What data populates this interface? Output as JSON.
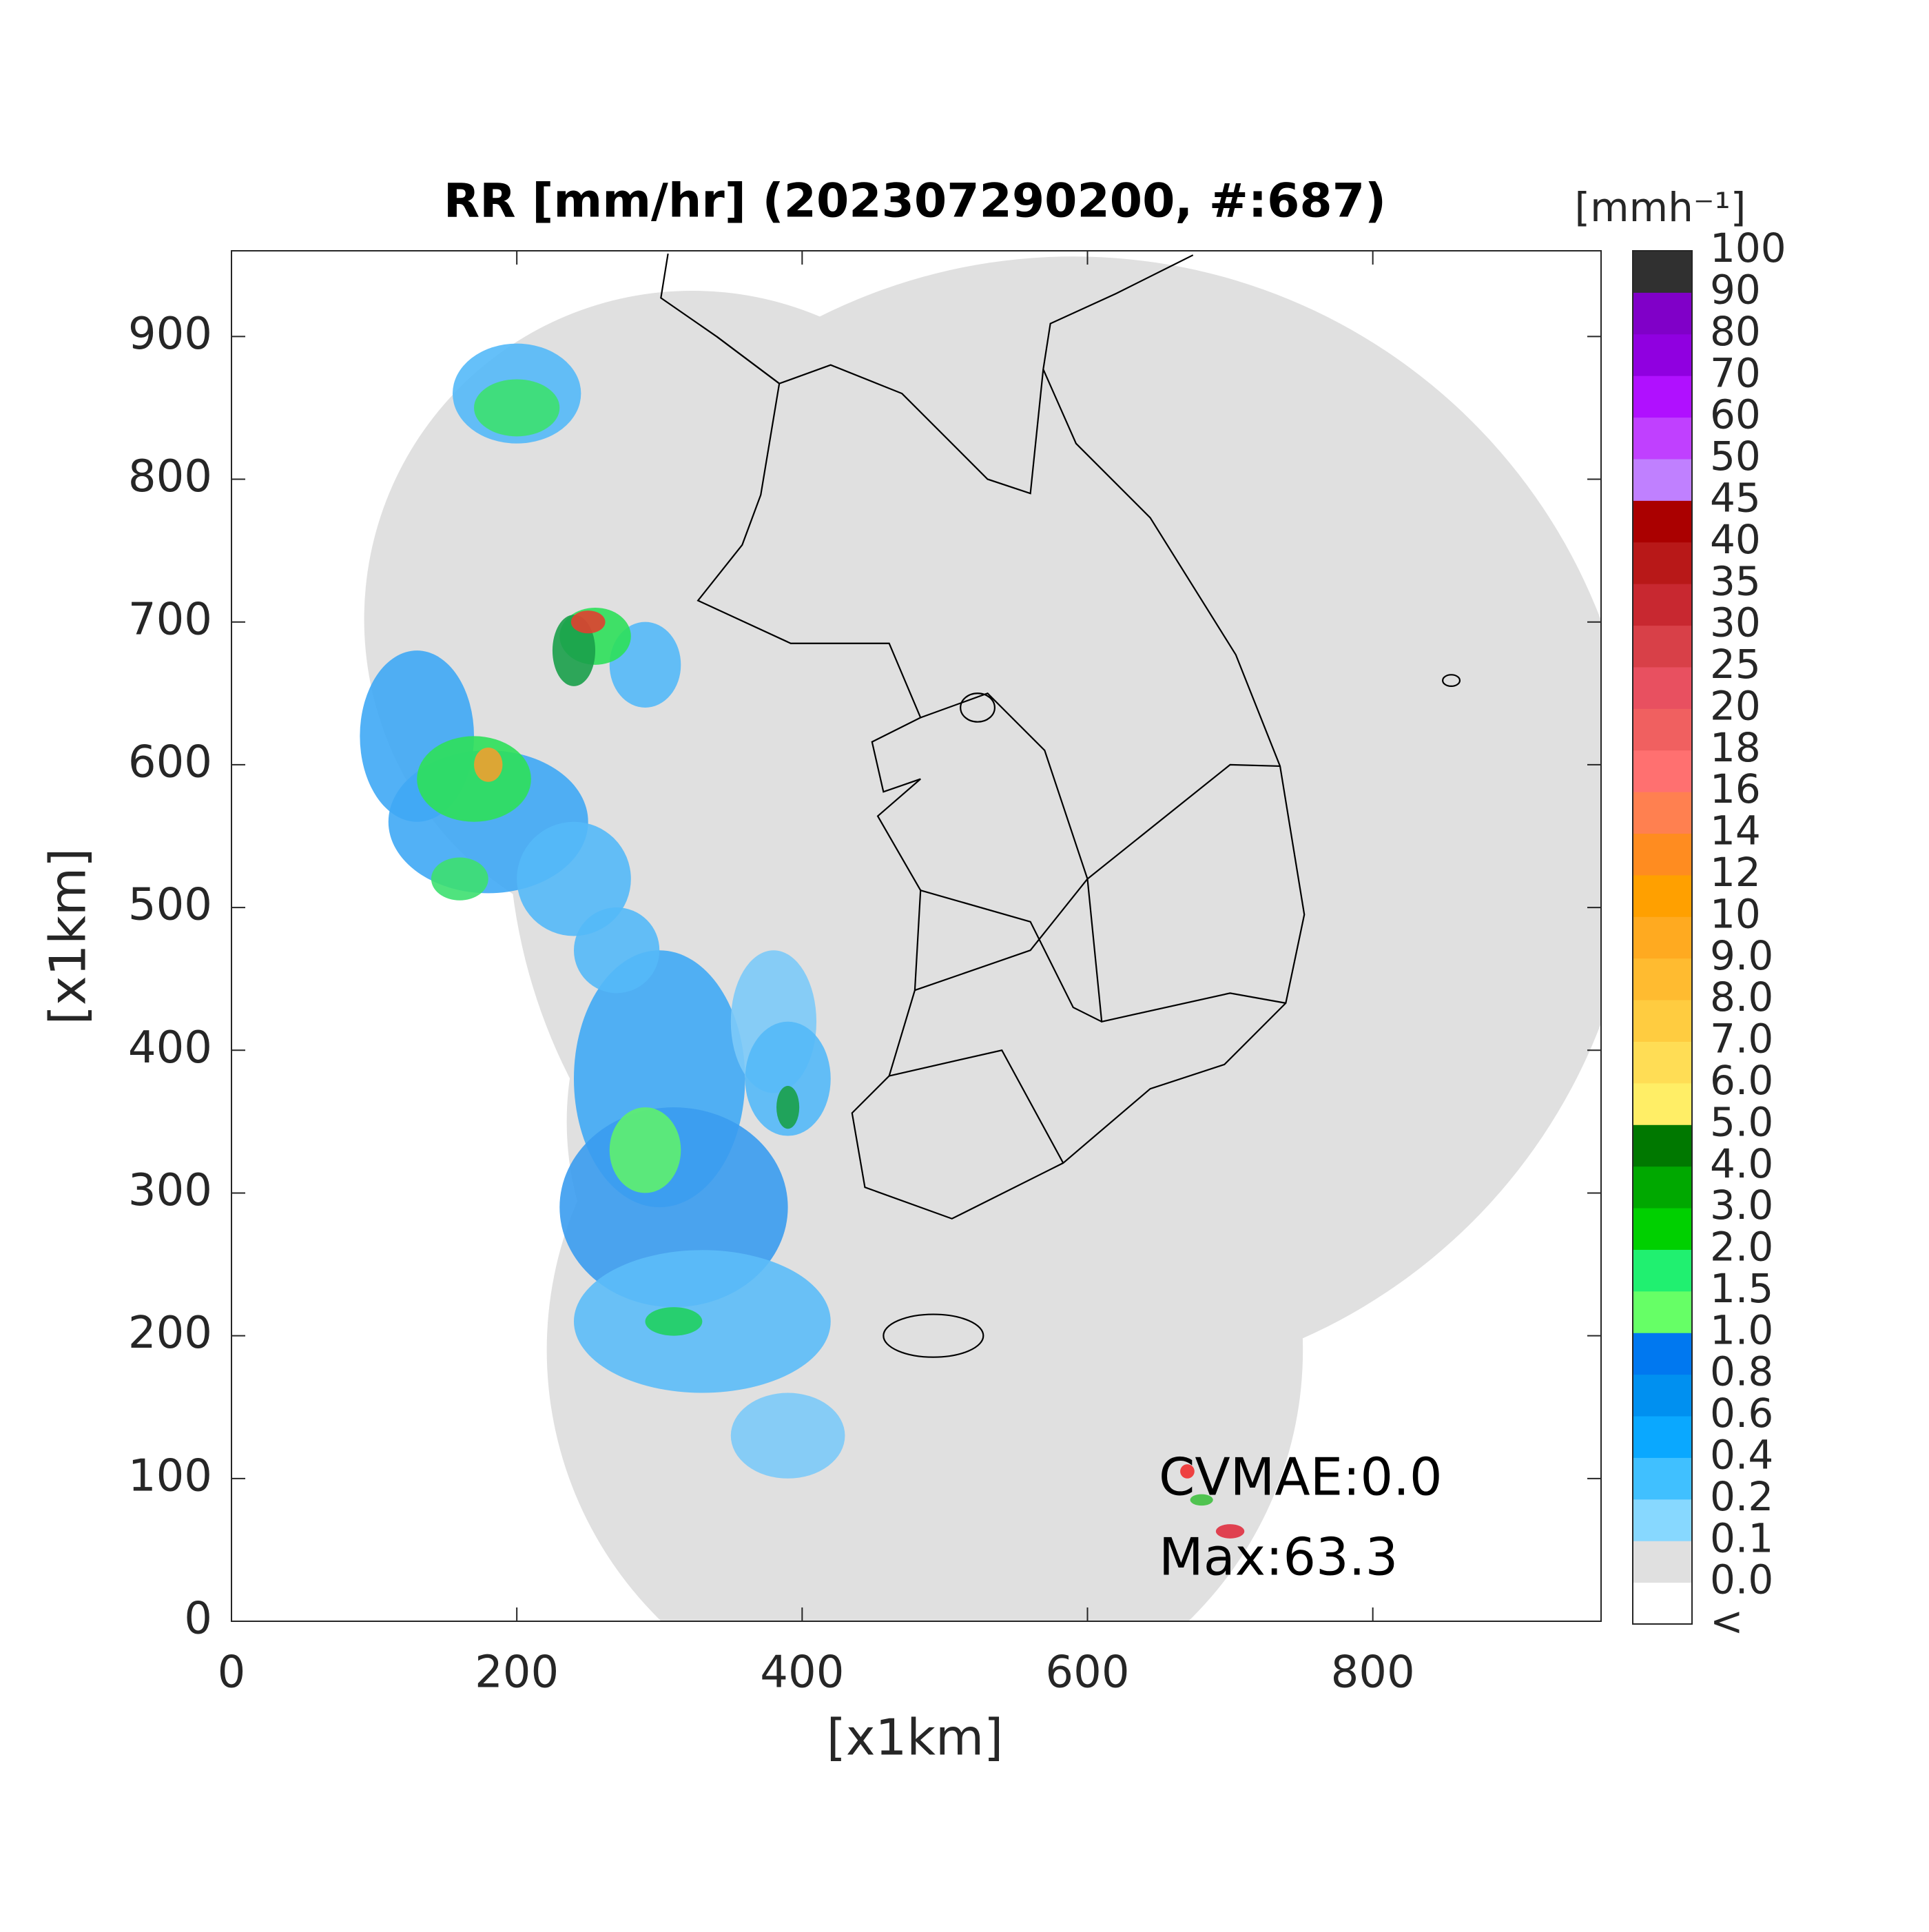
{
  "chart_data": {
    "type": "map",
    "title": "RR [mm/hr] (202307290200, #:687)",
    "xlabel": "[x1km]",
    "ylabel": "[x1km]",
    "xlim": [
      0,
      960
    ],
    "ylim": [
      0,
      960
    ],
    "xticks": [
      0,
      200,
      400,
      600,
      800
    ],
    "yticks": [
      0,
      100,
      200,
      300,
      400,
      500,
      600,
      700,
      800,
      900
    ],
    "annotations": [
      "CVMAE:0.0",
      "Max:63.3"
    ],
    "colorbar": {
      "label": "[mmh⁻¹]",
      "ticks": [
        "<",
        "0.0",
        "0.1",
        "0.2",
        "0.4",
        "0.6",
        "0.8",
        "1.0",
        "1.5",
        "2.0",
        "3.0",
        "4.0",
        "5.0",
        "6.0",
        "7.0",
        "8.0",
        "9.0",
        "10",
        "12",
        "14",
        "16",
        "18",
        "20",
        "25",
        "30",
        "35",
        "40",
        "45",
        "50",
        "60",
        "70",
        "80",
        "90",
        "100"
      ],
      "colors": [
        "#ffffff",
        "#e0e0e0",
        "#87d8ff",
        "#40c0ff",
        "#0aa8ff",
        "#0090f0",
        "#0078f0",
        "#66ff66",
        "#20f070",
        "#00d000",
        "#00a800",
        "#007800",
        "#ffee66",
        "#ffdd55",
        "#ffcc40",
        "#ffbb30",
        "#ffaa20",
        "#ffa000",
        "#ff8c20",
        "#ff8050",
        "#ff7070",
        "#f06060",
        "#e85060",
        "#d84048",
        "#c82830",
        "#b81818",
        "#aa0000",
        "#c080ff",
        "#c040ff",
        "#b010ff",
        "#9000e0",
        "#8000c8",
        "#303030"
      ]
    }
  }
}
